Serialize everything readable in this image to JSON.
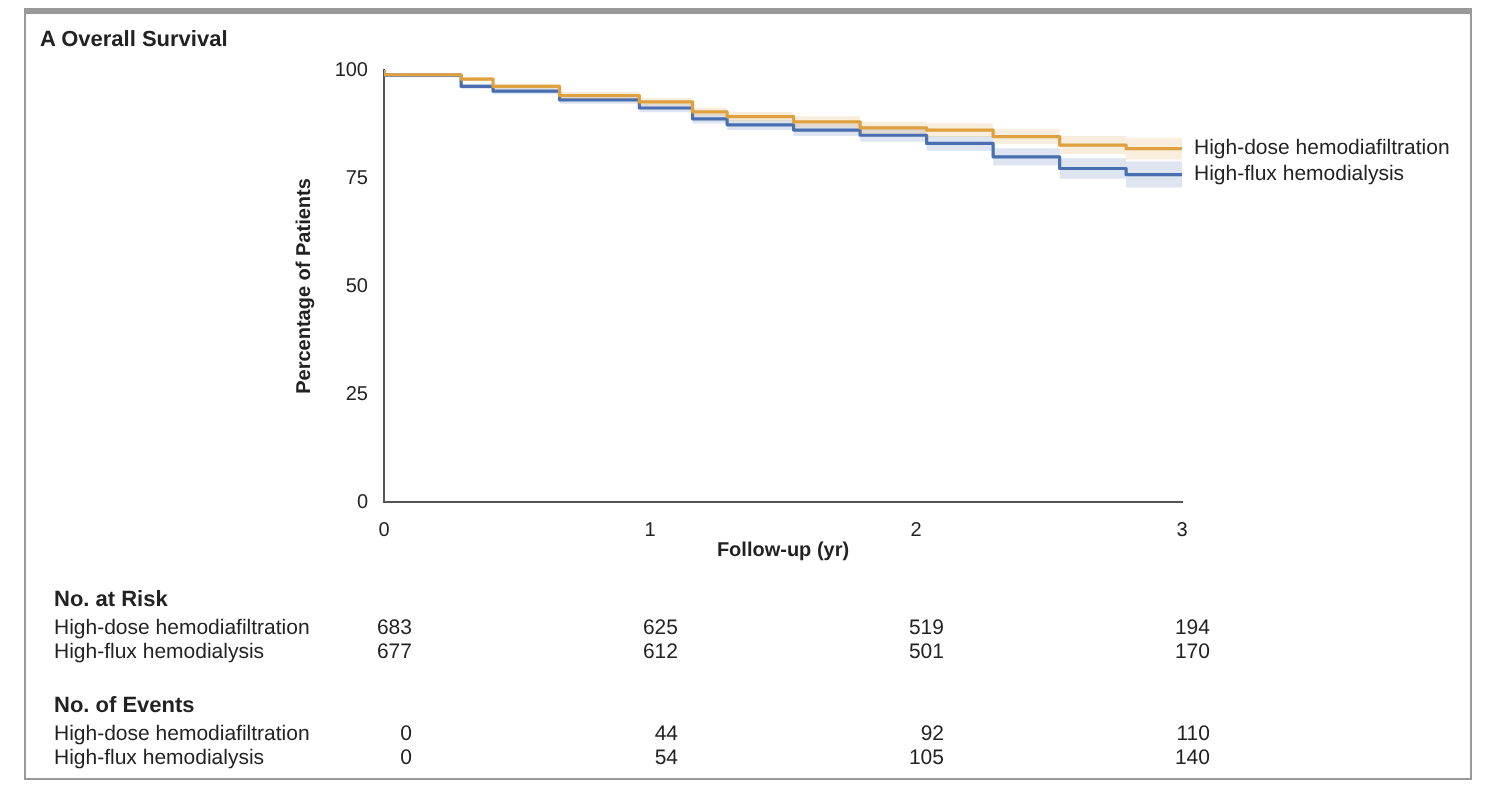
{
  "chart_data": {
    "type": "step",
    "title": "A  Overall Survival",
    "xlabel": "Follow-up (yr)",
    "ylabel": "Percentage of Patients",
    "x": [
      0,
      0.29,
      0.41,
      0.66,
      0.96,
      1.16,
      1.29,
      1.54,
      1.79,
      2.04,
      2.29,
      2.54,
      2.79,
      3
    ],
    "series": [
      {
        "name": "High-dose hemodiafiltration",
        "color": "#e0a040",
        "values": [
          100,
          98.9,
          97.9,
          96.2,
          94.1,
          92.6,
          90.3,
          89.2,
          88.0,
          86.6,
          86.1,
          84.6,
          82.6,
          81.8
        ],
        "upper": [
          100,
          99.3,
          98.4,
          96.8,
          94.9,
          93.5,
          91.3,
          90.3,
          89.3,
          88.0,
          87.7,
          86.4,
          84.7,
          84.3
        ],
        "lower": [
          100,
          98.5,
          97.4,
          95.6,
          93.3,
          91.7,
          89.3,
          88.1,
          86.7,
          85.2,
          84.5,
          82.8,
          80.5,
          79.3
        ]
      },
      {
        "name": "High-flux hemodialysis",
        "color": "#4a6fb0",
        "values": [
          100,
          98.8,
          96.2,
          95.1,
          93.1,
          91.2,
          88.7,
          87.3,
          86.1,
          84.9,
          83.0,
          79.9,
          77.2,
          75.8
        ],
        "upper": [
          100,
          99.2,
          96.8,
          95.8,
          94.0,
          92.2,
          89.8,
          88.5,
          87.5,
          86.4,
          84.7,
          81.9,
          79.6,
          78.8
        ],
        "lower": [
          100,
          98.4,
          95.6,
          94.4,
          92.2,
          90.2,
          87.6,
          86.1,
          84.7,
          83.4,
          81.3,
          77.9,
          74.8,
          72.8
        ]
      }
    ],
    "xlim": [
      0,
      3
    ],
    "xticks": [
      0,
      1,
      2,
      3
    ],
    "ylim": [
      0,
      100
    ],
    "yticks": [
      0,
      25,
      50,
      75,
      100
    ],
    "grid": false,
    "annotations": [
      "No. at Risk",
      "High-dose hemodiafiltration",
      "683",
      "625",
      "519",
      "194",
      "High-flux hemodialysis",
      "677",
      "612",
      "501",
      "170",
      "No. of Events",
      "High-dose hemodiafiltration",
      "0",
      "44",
      "92",
      "110",
      "High-flux hemodialysis",
      "0",
      "54",
      "105",
      "140"
    ]
  }
}
